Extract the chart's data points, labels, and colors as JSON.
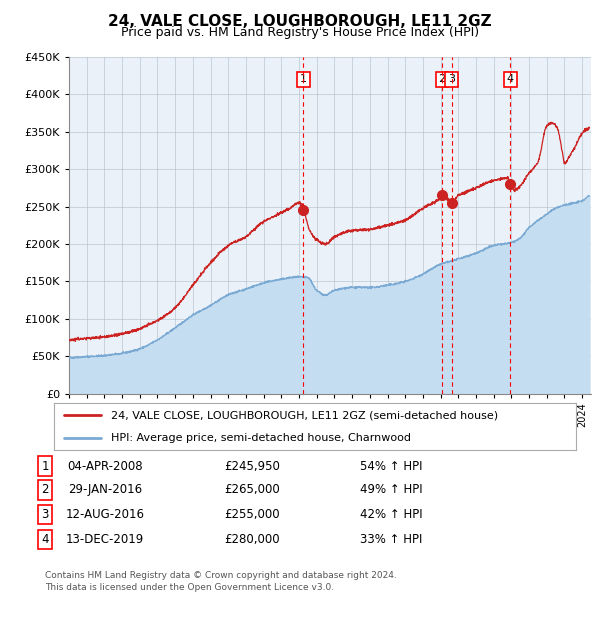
{
  "title": "24, VALE CLOSE, LOUGHBOROUGH, LE11 2GZ",
  "subtitle": "Price paid vs. HM Land Registry's House Price Index (HPI)",
  "legend_line1": "24, VALE CLOSE, LOUGHBOROUGH, LE11 2GZ (semi-detached house)",
  "legend_line2": "HPI: Average price, semi-detached house, Charnwood",
  "footer_line1": "Contains HM Land Registry data © Crown copyright and database right 2024.",
  "footer_line2": "This data is licensed under the Open Government Licence v3.0.",
  "hpi_color": "#7aaad4",
  "hpi_fill_color": "#c5ddf0",
  "price_color": "#cc2222",
  "marker_color": "#cc2222",
  "plot_bg": "#eaf1f8",
  "grid_color": "#b0bcc8",
  "ylim": [
    0,
    450000
  ],
  "ytick_step": 50000,
  "xlim_start": 1995,
  "xlim_end": 2024.5,
  "sale_events": [
    {
      "label": "1",
      "date_num": 2008.25,
      "price": 245950
    },
    {
      "label": "2",
      "date_num": 2016.08,
      "price": 265000
    },
    {
      "label": "3",
      "date_num": 2016.62,
      "price": 255000
    },
    {
      "label": "4",
      "date_num": 2019.95,
      "price": 280000
    }
  ],
  "table_rows": [
    {
      "num": "1",
      "date": "04-APR-2008",
      "price": "£245,950",
      "hpi": "54% ↑ HPI"
    },
    {
      "num": "2",
      "date": "29-JAN-2016",
      "price": "£265,000",
      "hpi": "49% ↑ HPI"
    },
    {
      "num": "3",
      "date": "12-AUG-2016",
      "price": "£255,000",
      "hpi": "42% ↑ HPI"
    },
    {
      "num": "4",
      "date": "13-DEC-2019",
      "price": "£280,000",
      "hpi": "33% ↑ HPI"
    }
  ]
}
